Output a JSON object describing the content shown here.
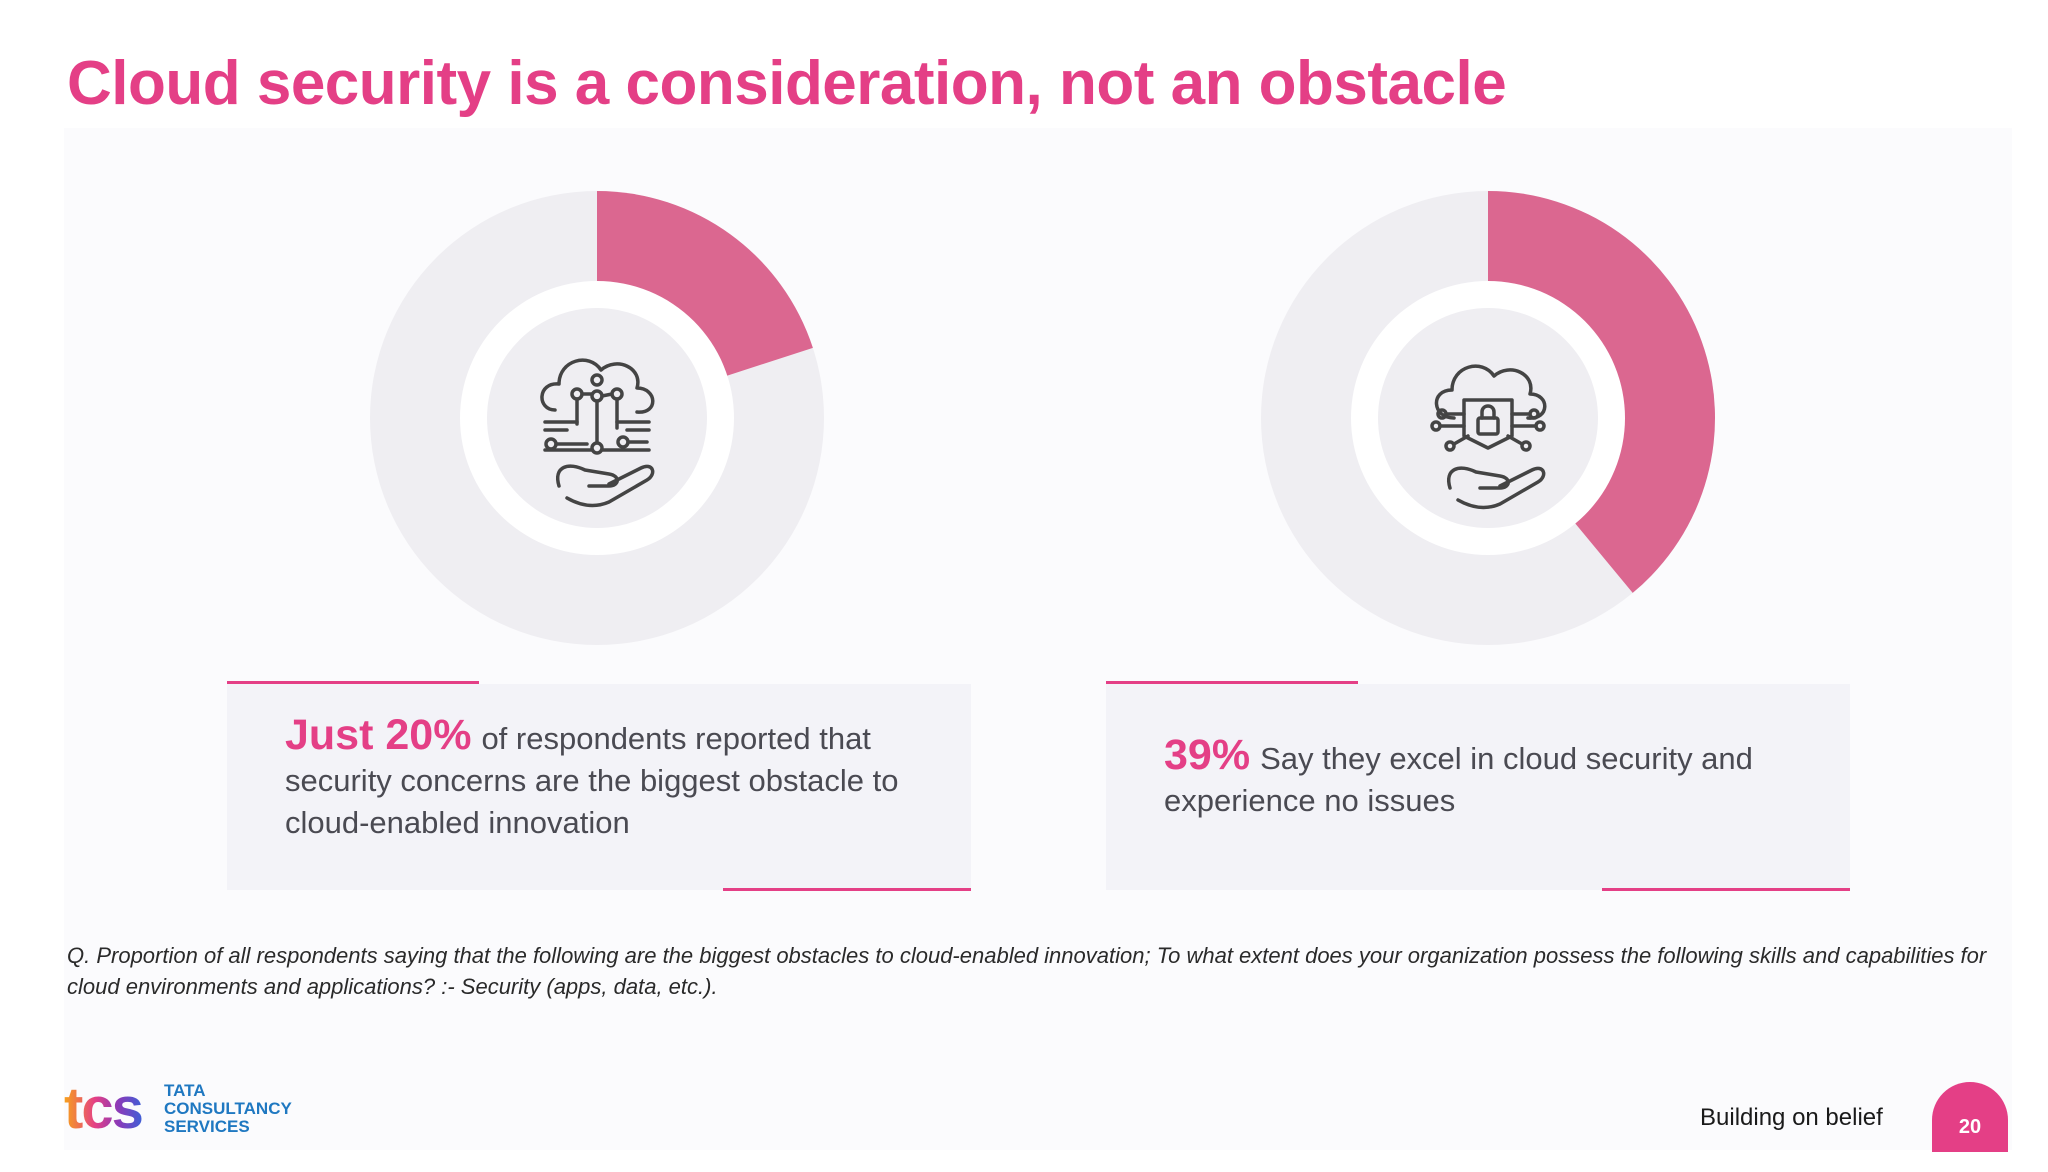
{
  "slide": {
    "title": "Cloud security is a consideration, not an obstacle",
    "footnote": "Q. Proportion of all respondents saying that the following are the biggest obstacles to cloud-enabled innovation; To what extent does your organization possess the following skills and capabilities for cloud environments and applications? :- Security (apps, data, etc.).",
    "tagline": "Building on belief",
    "page_number": "20"
  },
  "brand": {
    "logo_mark": "tcs",
    "line1": "TATA",
    "line2": "CONSULTANCY",
    "line3": "SERVICES"
  },
  "colors": {
    "accent": "#e43f86",
    "slice": "#db6790",
    "track": "#efeef2",
    "icon_stroke": "#444444"
  },
  "chart_data": [
    {
      "type": "pie",
      "variant": "donut",
      "values": [
        20,
        80
      ],
      "categories": [
        "",
        ""
      ],
      "center_icon": "cloud-circuit-hand-icon"
    },
    {
      "type": "pie",
      "variant": "donut",
      "values": [
        39,
        61
      ],
      "categories": [
        "",
        ""
      ],
      "center_icon": "cloud-lock-shield-hand-icon"
    }
  ],
  "cards": [
    {
      "highlight": "Just 20%",
      "text": "of respondents reported that security concerns are the biggest obstacle to cloud-enabled innovation"
    },
    {
      "highlight": "39%",
      "text": "Say they excel in cloud security and experience no issues"
    }
  ]
}
